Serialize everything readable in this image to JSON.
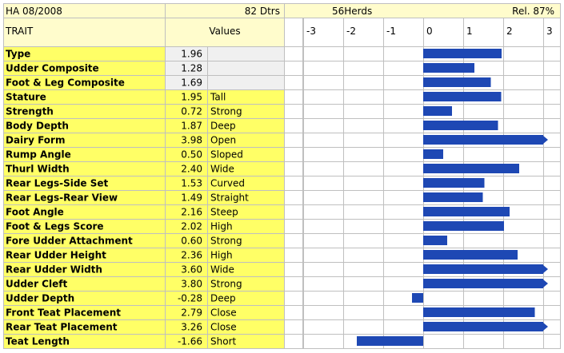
{
  "header": {
    "proof": "HA 08/2008",
    "daughters": "82 Dtrs",
    "herds": "56Herds",
    "reliability": "Rel. 87%"
  },
  "columns": {
    "trait": "TRAIT",
    "values": "Values"
  },
  "colors": {
    "trait_bg": "#ffff66",
    "value_bg": "#fffccc",
    "header_bg": "#fffccc",
    "gray_bg": "#f0f0f0",
    "bar": "#1e48b4",
    "grid": "#bfbfbf"
  },
  "chart_data": {
    "type": "bar",
    "orientation": "horizontal",
    "xlim": [
      -3,
      3
    ],
    "ticks": [
      -3,
      -2,
      -1,
      0,
      1,
      2,
      3
    ],
    "tick_labels": [
      "-3",
      "-2",
      "-1",
      "0",
      "1",
      "2",
      "3"
    ],
    "categories": [
      "Type",
      "Udder Composite",
      "Foot & Leg Composite",
      "Stature",
      "Strength",
      "Body Depth",
      "Dairy Form",
      "Rump Angle",
      "Thurl Width",
      "Rear Legs-Side Set",
      "Rear Legs-Rear View",
      "Foot Angle",
      "Foot & Legs Score",
      "Fore Udder Attachment",
      "Rear Udder Height",
      "Rear Udder Width",
      "Udder Cleft",
      "Udder Depth",
      "Front Teat Placement",
      "Rear Teat Placement",
      "Teat Length"
    ],
    "values": [
      1.96,
      1.28,
      1.69,
      1.95,
      0.72,
      1.87,
      3.98,
      0.5,
      2.4,
      1.53,
      1.49,
      2.16,
      2.02,
      0.6,
      2.36,
      3.6,
      3.8,
      -0.28,
      2.79,
      3.26,
      -1.66
    ],
    "value_labels": [
      "1.96",
      "1.28",
      "1.69",
      "1.95",
      "0.72",
      "1.87",
      "3.98",
      "0.50",
      "2.40",
      "1.53",
      "1.49",
      "2.16",
      "2.02",
      "0.60",
      "2.36",
      "3.60",
      "3.80",
      "-0.28",
      "2.79",
      "3.26",
      "-1.66"
    ],
    "descriptors": [
      "",
      "",
      "",
      "Tall",
      "Strong",
      "Deep",
      "Open",
      "Sloped",
      "Wide",
      "Curved",
      "Straight",
      "Steep",
      "High",
      "Strong",
      "High",
      "Wide",
      "Strong",
      "Deep",
      "Close",
      "Close",
      "Short"
    ]
  }
}
